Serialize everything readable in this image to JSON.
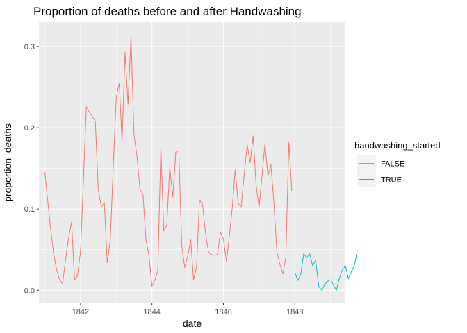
{
  "chart_data": {
    "type": "line",
    "title": "Proportion of deaths before and after Handwashing",
    "xlabel": "date",
    "ylabel": "proportion_deaths",
    "xlim": [
      "1840-11-01",
      "1849-06-01"
    ],
    "ylim": [
      -0.016,
      0.33
    ],
    "x_ticks": [
      "1842-01-01",
      "1844-01-01",
      "1846-01-01",
      "1848-01-01"
    ],
    "x_tick_labels": [
      "1842",
      "1844",
      "1846",
      "1848"
    ],
    "y_ticks": [
      0,
      0.1,
      0.2,
      0.3
    ],
    "y_tick_labels": [
      "0.0",
      "0.1",
      "0.2",
      "0.3"
    ],
    "grid": true,
    "legend": {
      "title": "handwashing_started",
      "position": "right"
    },
    "series": [
      {
        "name": "FALSE",
        "color": "#F8766D",
        "points": [
          [
            "1841-01-01",
            0.145
          ],
          [
            "1841-02-01",
            0.108
          ],
          [
            "1841-03-01",
            0.075
          ],
          [
            "1841-04-01",
            0.045
          ],
          [
            "1841-05-01",
            0.025
          ],
          [
            "1841-06-01",
            0.013
          ],
          [
            "1841-07-01",
            0.008
          ],
          [
            "1841-08-01",
            0.038
          ],
          [
            "1841-09-01",
            0.065
          ],
          [
            "1841-10-01",
            0.084
          ],
          [
            "1841-11-01",
            0.013
          ],
          [
            "1841-12-01",
            0.018
          ],
          [
            "1842-01-01",
            0.048
          ],
          [
            "1842-02-01",
            0.14
          ],
          [
            "1842-03-01",
            0.226
          ],
          [
            "1842-04-01",
            0.219
          ],
          [
            "1842-05-01",
            0.214
          ],
          [
            "1842-06-01",
            0.208
          ],
          [
            "1842-07-01",
            0.124
          ],
          [
            "1842-08-01",
            0.102
          ],
          [
            "1842-09-01",
            0.108
          ],
          [
            "1842-10-01",
            0.034
          ],
          [
            "1842-11-01",
            0.062
          ],
          [
            "1842-12-01",
            0.151
          ],
          [
            "1843-01-01",
            0.238
          ],
          [
            "1843-02-01",
            0.255
          ],
          [
            "1843-03-01",
            0.183
          ],
          [
            "1843-04-01",
            0.293
          ],
          [
            "1843-05-01",
            0.229
          ],
          [
            "1843-06-01",
            0.313
          ],
          [
            "1843-07-01",
            0.192
          ],
          [
            "1843-08-01",
            0.165
          ],
          [
            "1843-09-01",
            0.124
          ],
          [
            "1843-10-01",
            0.118
          ],
          [
            "1843-11-01",
            0.062
          ],
          [
            "1843-12-01",
            0.043
          ],
          [
            "1844-01-01",
            0.005
          ],
          [
            "1844-02-01",
            0.013
          ],
          [
            "1844-03-01",
            0.024
          ],
          [
            "1844-04-01",
            0.176
          ],
          [
            "1844-05-01",
            0.073
          ],
          [
            "1844-06-01",
            0.08
          ],
          [
            "1844-07-01",
            0.151
          ],
          [
            "1844-08-01",
            0.115
          ],
          [
            "1844-09-01",
            0.17
          ],
          [
            "1844-10-01",
            0.172
          ],
          [
            "1844-11-01",
            0.055
          ],
          [
            "1844-12-01",
            0.028
          ],
          [
            "1845-01-01",
            0.042
          ],
          [
            "1845-02-01",
            0.062
          ],
          [
            "1845-03-01",
            0.013
          ],
          [
            "1845-04-01",
            0.028
          ],
          [
            "1845-05-01",
            0.111
          ],
          [
            "1845-06-01",
            0.106
          ],
          [
            "1845-07-01",
            0.071
          ],
          [
            "1845-08-01",
            0.047
          ],
          [
            "1845-09-01",
            0.044
          ],
          [
            "1845-10-01",
            0.043
          ],
          [
            "1845-11-01",
            0.044
          ],
          [
            "1845-12-01",
            0.071
          ],
          [
            "1846-01-01",
            0.063
          ],
          [
            "1846-02-01",
            0.035
          ],
          [
            "1846-03-01",
            0.065
          ],
          [
            "1846-04-01",
            0.101
          ],
          [
            "1846-05-01",
            0.148
          ],
          [
            "1846-06-01",
            0.107
          ],
          [
            "1846-07-01",
            0.102
          ],
          [
            "1846-08-01",
            0.142
          ],
          [
            "1846-09-01",
            0.179
          ],
          [
            "1846-10-01",
            0.157
          ],
          [
            "1846-11-01",
            0.19
          ],
          [
            "1846-12-01",
            0.129
          ],
          [
            "1847-01-01",
            0.102
          ],
          [
            "1847-02-01",
            0.143
          ],
          [
            "1847-03-01",
            0.18
          ],
          [
            "1847-04-01",
            0.141
          ],
          [
            "1847-05-01",
            0.155
          ],
          [
            "1847-06-01",
            0.108
          ],
          [
            "1847-07-01",
            0.048
          ],
          [
            "1847-08-01",
            0.032
          ],
          [
            "1847-09-01",
            0.02
          ],
          [
            "1847-10-01",
            0.04
          ],
          [
            "1847-11-01",
            0.183
          ],
          [
            "1847-12-01",
            0.122
          ]
        ]
      },
      {
        "name": "TRUE",
        "color": "#00BFC4",
        "points": [
          [
            "1848-01-01",
            0.022
          ],
          [
            "1848-02-01",
            0.012
          ],
          [
            "1848-03-01",
            0.019
          ],
          [
            "1848-04-01",
            0.045
          ],
          [
            "1848-05-01",
            0.04
          ],
          [
            "1848-06-01",
            0.045
          ],
          [
            "1848-07-01",
            0.03
          ],
          [
            "1848-08-01",
            0.037
          ],
          [
            "1848-09-01",
            0.005
          ],
          [
            "1848-10-01",
            0.0
          ],
          [
            "1848-11-01",
            0.007
          ],
          [
            "1848-12-01",
            0.011
          ],
          [
            "1849-01-01",
            0.013
          ],
          [
            "1849-02-01",
            0.006
          ],
          [
            "1849-03-01",
            0.0
          ],
          [
            "1849-04-01",
            0.015
          ],
          [
            "1849-05-01",
            0.025
          ],
          [
            "1849-06-01",
            0.03
          ],
          [
            "1849-07-01",
            0.014
          ],
          [
            "1849-08-01",
            0.023
          ],
          [
            "1849-09-01",
            0.03
          ],
          [
            "1849-10-01",
            0.05
          ]
        ]
      }
    ]
  }
}
